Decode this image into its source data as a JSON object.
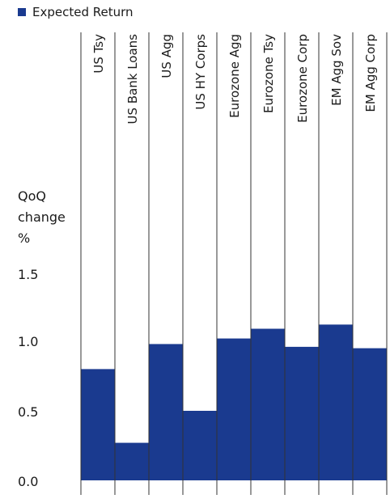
{
  "chart_data": {
    "type": "bar",
    "categories": [
      "US Tsy",
      "US Bank Loans",
      "US Agg",
      "US HY Corps",
      "Eurozone Agg",
      "Eurozone Tsy",
      "Eurozone Corp",
      "EM Agg Sov",
      "EM Agg Corp"
    ],
    "series": [
      {
        "name": "Expected Return",
        "values": [
          0.8,
          0.27,
          0.98,
          0.5,
          1.02,
          1.09,
          0.96,
          1.12,
          0.95
        ],
        "color": "#1a3a8f"
      }
    ],
    "ylabel_lines": [
      "QoQ",
      "change",
      "%"
    ],
    "yticks": [
      "1.5",
      "1.0",
      "0.5",
      "0.0"
    ],
    "ylim": [
      0,
      1.5
    ],
    "grid": false,
    "legend_position": "top-left"
  }
}
